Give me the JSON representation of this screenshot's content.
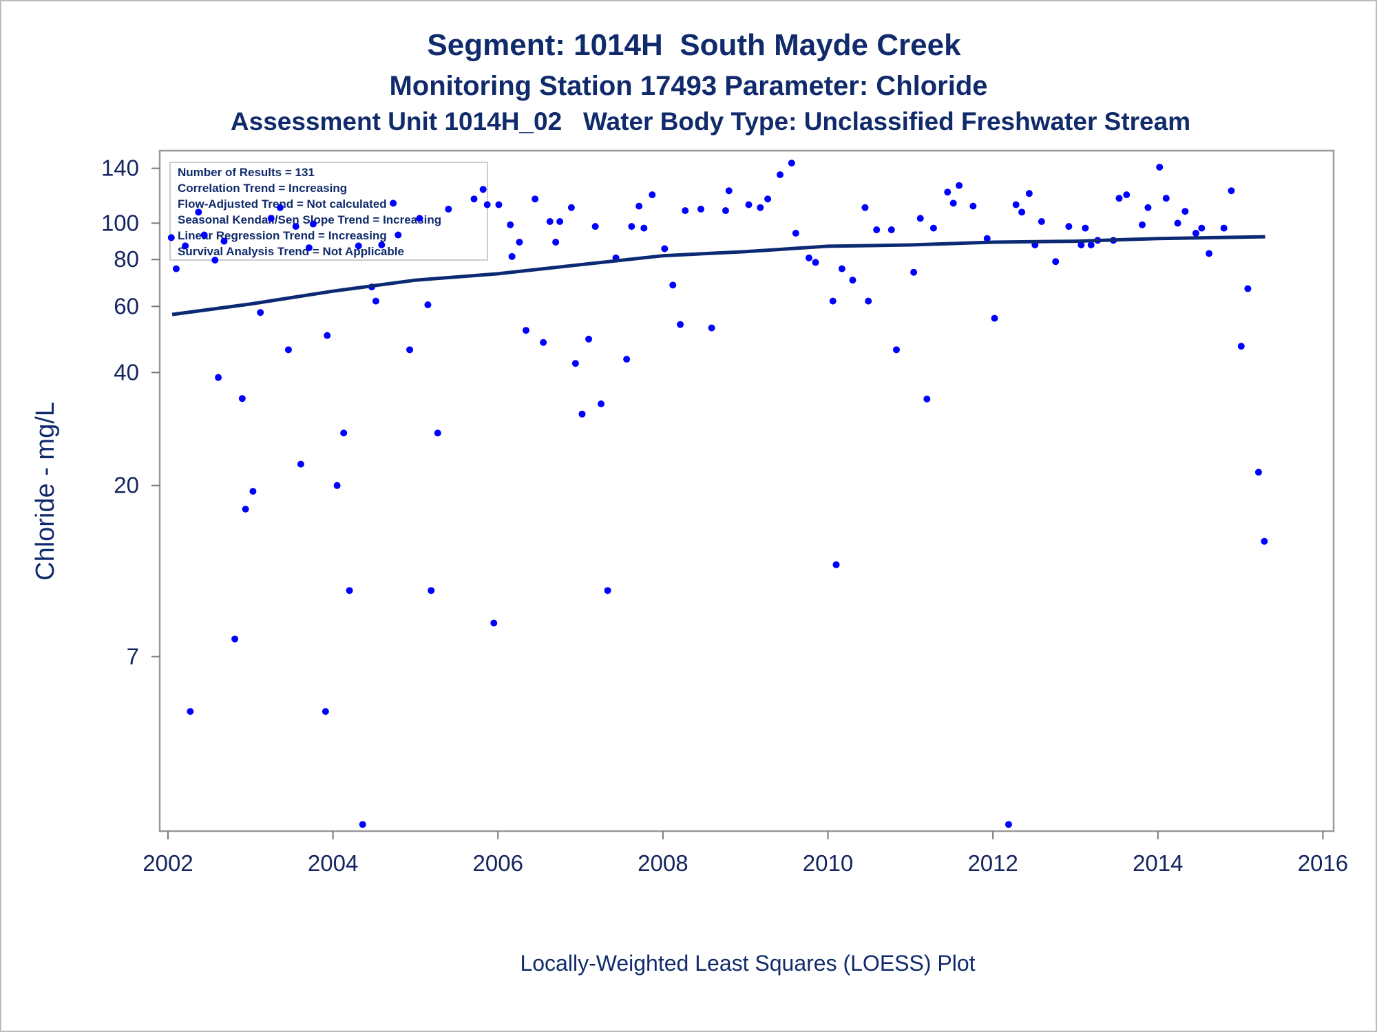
{
  "chart_data": {
    "type": "scatter",
    "title": "Segment: 1014H  South Mayde Creek",
    "subtitle": "Monitoring Station 17493 Parameter: Chloride",
    "subtitle2": "Assessment Unit 1014H_02   Water Body Type: Unclassified Freshwater Stream",
    "y_label": "Chloride - mg/L",
    "x_label": "Locally-Weighted Least Squares (LOESS) Plot",
    "annotations": [
      "Number of Results = 131",
      "Correlation Trend = Increasing",
      "Flow-Adjusted Trend = Not calculated",
      "Seasonal Kendall/Sen Slope Trend = Increasing",
      "Linear Regression Trend = Increasing",
      "Survival Analysis Trend = Not Applicable"
    ],
    "log_y": true,
    "xlim": [
      2001.9,
      2016.13
    ],
    "xticks": [
      2002,
      2004,
      2006,
      2008,
      2010,
      2012,
      2014,
      2016
    ],
    "ylim": [
      2.4,
      156
    ],
    "yticks": [
      7,
      20,
      40,
      60,
      80,
      100,
      140
    ],
    "series": [
      {
        "type": "scatter",
        "color": "#0000ff",
        "x": [
          2002.04,
          2002.1,
          2002.21,
          2002.27,
          2002.37,
          2002.44,
          2002.57,
          2002.61,
          2002.68,
          2002.81,
          2002.9,
          2002.94,
          2003.03,
          2003.12,
          2003.25,
          2003.36,
          2003.46,
          2003.55,
          2003.61,
          2003.71,
          2003.76,
          2003.91,
          2003.93,
          2004.05,
          2004.13,
          2004.2,
          2004.31,
          2004.36,
          2004.47,
          2004.52,
          2004.59,
          2004.73,
          2004.79,
          2004.93,
          2005.05,
          2005.15,
          2005.19,
          2005.27,
          2005.4,
          2005.71,
          2005.82,
          2005.87,
          2005.95,
          2006.01,
          2006.15,
          2006.17,
          2006.26,
          2006.34,
          2006.45,
          2006.55,
          2006.63,
          2006.7,
          2006.75,
          2006.89,
          2006.94,
          2007.02,
          2007.1,
          2007.18,
          2007.25,
          2007.33,
          2007.43,
          2007.56,
          2007.62,
          2007.71,
          2007.77,
          2007.87,
          2008.02,
          2008.12,
          2008.21,
          2008.27,
          2008.46,
          2008.59,
          2008.76,
          2008.8,
          2009.04,
          2009.18,
          2009.27,
          2009.42,
          2009.56,
          2009.61,
          2009.77,
          2009.85,
          2010.06,
          2010.1,
          2010.17,
          2010.3,
          2010.45,
          2010.49,
          2010.59,
          2010.77,
          2010.83,
          2011.04,
          2011.12,
          2011.2,
          2011.28,
          2011.45,
          2011.52,
          2011.59,
          2011.76,
          2011.93,
          2012.02,
          2012.19,
          2012.28,
          2012.35,
          2012.44,
          2012.51,
          2012.59,
          2012.76,
          2012.92,
          2013.07,
          2013.12,
          2013.19,
          2013.27,
          2013.46,
          2013.53,
          2013.62,
          2013.81,
          2013.88,
          2014.02,
          2014.1,
          2014.24,
          2014.33,
          2014.46,
          2014.53,
          2014.62,
          2014.8,
          2014.89,
          2015.01,
          2015.09,
          2015.22,
          2015.29
        ],
        "values": [
          91.5,
          75.6,
          87,
          5,
          107,
          93,
          79.7,
          38.8,
          89.5,
          7.8,
          34.1,
          17.3,
          19.3,
          57.8,
          103,
          110,
          46,
          98,
          22.8,
          86,
          99.5,
          5,
          50.2,
          20,
          27.6,
          10.5,
          87,
          2.5,
          67.6,
          62,
          87.5,
          113,
          93,
          46,
          103,
          60.6,
          10.5,
          27.6,
          109,
          116,
          123,
          112,
          8.6,
          112,
          99,
          81.5,
          89,
          51.8,
          116,
          48.1,
          101,
          89,
          101,
          110,
          42.3,
          31,
          49.1,
          98,
          33,
          10.5,
          80.8,
          43.4,
          98,
          111,
          97,
          119,
          85.5,
          68.4,
          53.7,
          108,
          109,
          52.6,
          108,
          122,
          112,
          110,
          116,
          134.6,
          144.6,
          94,
          80.8,
          78.6,
          62,
          12.3,
          75.6,
          70.5,
          110,
          62,
          96,
          96,
          46,
          74,
          103,
          34,
          97,
          121,
          113,
          126,
          111,
          91,
          55.8,
          2.5,
          112,
          107,
          120,
          87.5,
          101,
          79,
          98,
          87.5,
          97,
          87.5,
          90,
          90,
          116.5,
          119,
          99,
          110,
          141,
          116.5,
          100,
          107.5,
          94,
          97,
          83,
          97,
          122,
          47,
          66.9,
          21.7,
          14.2
        ]
      },
      {
        "type": "line",
        "color": "#0c2a73",
        "x": [
          2002.05,
          2003,
          2004,
          2005,
          2006,
          2007,
          2008,
          2009,
          2010,
          2011,
          2012,
          2013,
          2014,
          2015.3
        ],
        "values": [
          57.1,
          60.9,
          65.9,
          70.5,
          73.3,
          77.5,
          81.9,
          84,
          86.8,
          87.5,
          89,
          89.5,
          91,
          92
        ]
      }
    ]
  }
}
